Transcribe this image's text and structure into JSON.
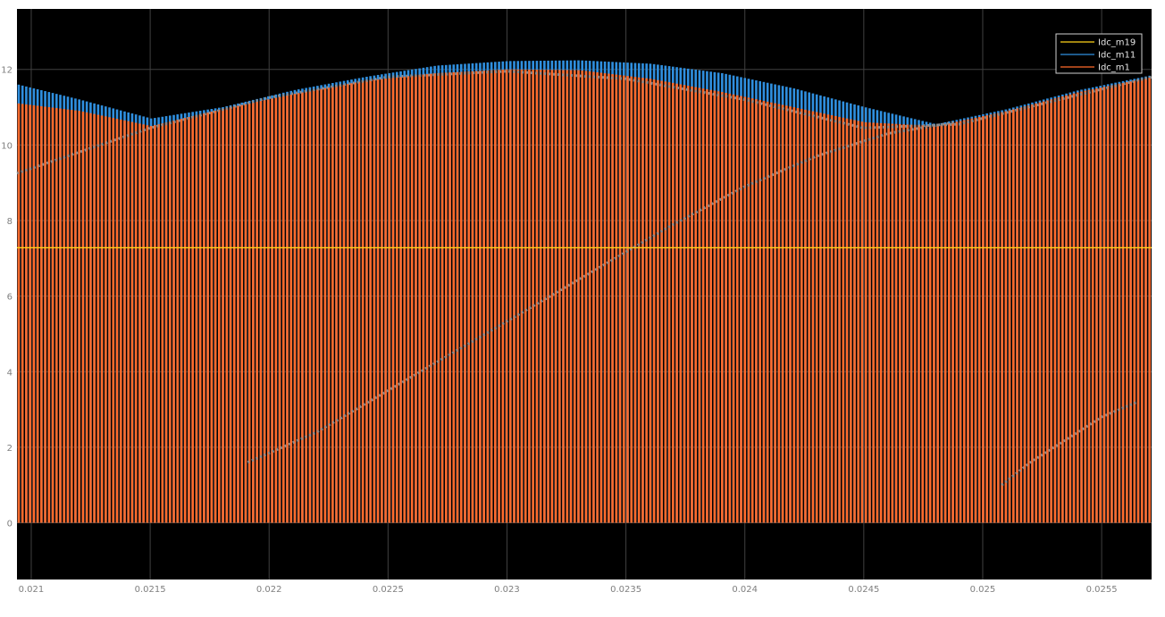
{
  "chart_data": {
    "type": "line",
    "title": "",
    "xlabel": "",
    "ylabel": "",
    "xlim": [
      0.02094,
      0.02571
    ],
    "ylim": [
      -1.5,
      13.6
    ],
    "grid": true,
    "legend_position": "top-right",
    "xticks": [
      "0.021",
      "0.0215",
      "0.022",
      "0.0225",
      "0.023",
      "0.0235",
      "0.024",
      "0.0245",
      "0.025",
      "0.0255"
    ],
    "xtick_values": [
      0.021,
      0.0215,
      0.022,
      0.0225,
      0.023,
      0.0235,
      0.024,
      0.0245,
      0.025,
      0.0255
    ],
    "yticks": [
      "0",
      "2",
      "4",
      "6",
      "8",
      "10",
      "12"
    ],
    "ytick_values": [
      0,
      2,
      4,
      6,
      8,
      10,
      12
    ],
    "pulse_count": 300,
    "series": [
      {
        "name": "Idc_m19",
        "color": "#ffd21a",
        "description_level": 7.28,
        "x": [
          0.02094,
          0.0213,
          0.0217,
          0.0221,
          0.0225,
          0.0229,
          0.0233,
          0.0237,
          0.0241,
          0.0245,
          0.0249,
          0.0253,
          0.02571
        ],
        "values": [
          7.28,
          7.28,
          7.28,
          7.28,
          7.28,
          7.28,
          7.28,
          7.28,
          7.28,
          7.28,
          7.28,
          7.28,
          7.28
        ]
      },
      {
        "name": "Idc_m11",
        "color": "#2f8fdf",
        "x": [
          0.02094,
          0.0212,
          0.0215,
          0.0218,
          0.0221,
          0.0224,
          0.0227,
          0.023,
          0.0233,
          0.0236,
          0.0239,
          0.0242,
          0.0245,
          0.0248,
          0.0251,
          0.0254,
          0.02571
        ],
        "values": [
          11.6,
          11.2,
          10.7,
          11.0,
          11.45,
          11.8,
          12.1,
          12.22,
          12.24,
          12.15,
          11.9,
          11.5,
          11.0,
          10.55,
          10.95,
          11.45,
          11.85
        ]
      },
      {
        "name": "Idc_m1",
        "color": "#ff6a2b",
        "x": [
          0.02094,
          0.0212,
          0.0215,
          0.0218,
          0.0221,
          0.0224,
          0.0227,
          0.023,
          0.0233,
          0.0236,
          0.0239,
          0.0242,
          0.0245,
          0.0248,
          0.0251,
          0.0254,
          0.02571
        ],
        "values": [
          11.1,
          10.9,
          10.5,
          10.95,
          11.35,
          11.7,
          11.9,
          12.0,
          11.98,
          11.75,
          11.4,
          11.0,
          10.6,
          10.5,
          10.9,
          11.4,
          11.8
        ]
      }
    ],
    "envelope_rising_diag": {
      "color": "#8c8c8c",
      "x": [
        0.02094,
        0.0215,
        0.022,
        0.0225,
        0.023,
        0.0235,
        0.024,
        0.0245,
        0.0249,
        0.02571
      ],
      "values": [
        9.25,
        10.45,
        11.25,
        11.8,
        11.95,
        11.75,
        11.2,
        10.45,
        10.55,
        11.8
      ]
    },
    "envelope_diagonal": {
      "color": "#8c8c8c",
      "x": [
        0.02191,
        0.0222,
        0.0225,
        0.0228,
        0.0231,
        0.0234,
        0.0237,
        0.024,
        0.0243,
        0.0246,
        0.02488
      ],
      "values": [
        1.6,
        2.4,
        3.5,
        4.6,
        5.7,
        6.8,
        7.9,
        8.9,
        9.7,
        10.3,
        10.6
      ]
    },
    "envelope_right_rise": {
      "color": "#8c8c8c",
      "x": [
        0.02508,
        0.0252,
        0.0253,
        0.0254,
        0.0255,
        0.02565
      ],
      "values": [
        1.0,
        1.6,
        2.0,
        2.4,
        2.8,
        3.2
      ]
    }
  },
  "legend": {
    "items": [
      {
        "label": "Idc_m19",
        "color": "#ffd21a"
      },
      {
        "label": "Idc_m11",
        "color": "#2f8fdf"
      },
      {
        "label": "Idc_m1",
        "color": "#ff6a2b"
      }
    ]
  },
  "colors": {
    "background": "#000000",
    "figure_background": "#ffffff",
    "grid": "#404040",
    "tick_label": "#7f7f7f"
  }
}
